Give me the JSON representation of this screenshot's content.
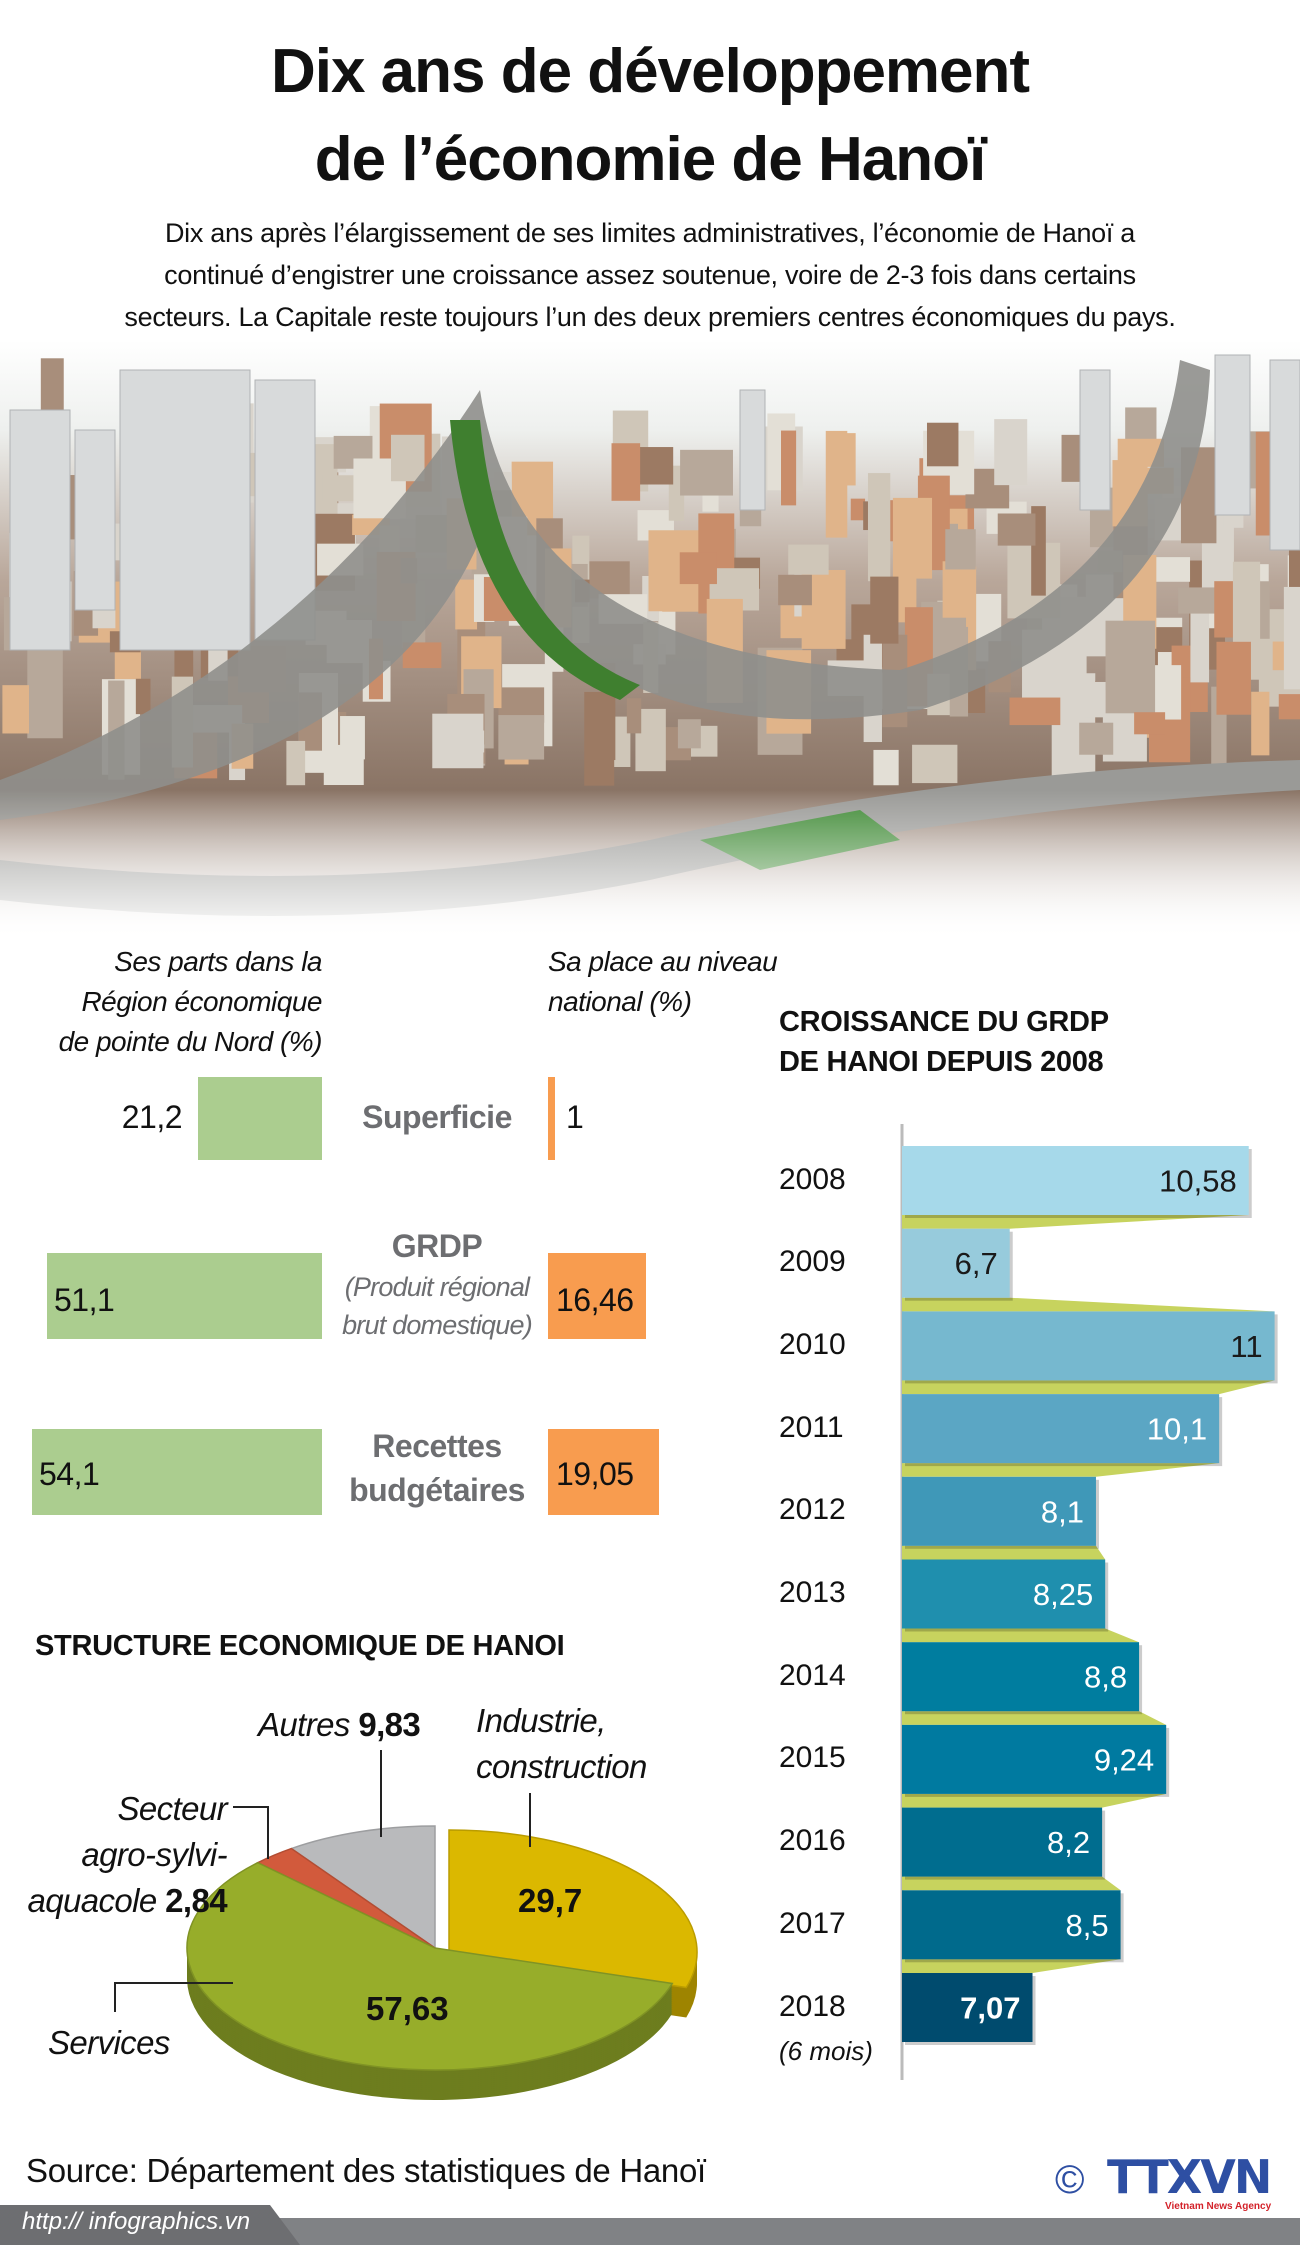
{
  "header": {
    "title_lines": [
      "Dix ans de développement",
      "de l’économie de Hanoï"
    ],
    "intro_lines": [
      "Dix ans après l’élargissement de ses limites administratives, l’économie de Hanoï a",
      "continué d’engistrer une croissance assez soutenue, voire de 2-3 fois dans certains",
      "secteurs. La Capitale reste toujours l’un des deux premiers centres économiques du pays."
    ]
  },
  "photo": {
    "icon": "hanoi-cityscape-photo"
  },
  "comparison": {
    "left_header": [
      "Ses parts dans la",
      "Région économique",
      "de pointe du Nord (%)"
    ],
    "right_header": [
      "Sa place au niveau",
      "national (%)"
    ],
    "rows": [
      {
        "label": "Superficie",
        "sub": [],
        "region_share": "21,2",
        "national_share": "1",
        "region_value": 21.2,
        "national_value": 1
      },
      {
        "label": "GRDP",
        "sub": [
          "(Produit régional",
          "brut domestique)"
        ],
        "region_share": "51,1",
        "national_share": "16,46",
        "region_value": 51.1,
        "national_value": 16.46
      },
      {
        "label": "Recettes",
        "label2": "budgétaires",
        "sub": [],
        "region_share": "54,1",
        "national_share": "19,05",
        "region_value": 54.1,
        "national_value": 19.05
      }
    ],
    "colors": {
      "region": "#abcd8f",
      "national": "#f89c4f"
    }
  },
  "chart_data": [
    {
      "type": "bar",
      "orientation": "horizontal",
      "title": "CROISSANCE DU GRDP DE HANOI DEPUIS 2008",
      "title_lines": [
        "CROISSANCE DU GRDP",
        "DE HANOI DEPUIS 2008"
      ],
      "categories": [
        "2008",
        "2009",
        "2010",
        "2011",
        "2012",
        "2013",
        "2014",
        "2015",
        "2016",
        "2017",
        "2018"
      ],
      "category_note": "(6 mois)",
      "values": [
        10.58,
        6.7,
        11,
        10.1,
        8.1,
        8.25,
        8.8,
        9.24,
        8.2,
        8.5,
        7.07
      ],
      "labels": [
        "10,58",
        "6,7",
        "11",
        "10,1",
        "8,1",
        "8,25",
        "8,8",
        "9,24",
        "8,2",
        "8,5",
        "7,07"
      ],
      "colors": [
        "#a6d9ea",
        "#97cbdc",
        "#76b8cf",
        "#5ba6c4",
        "#3f98b8",
        "#1f8fae",
        "#007d9f",
        "#007aa0",
        "#006d8f",
        "#006a8c",
        "#004b6e"
      ],
      "connector_color": "#c7d35e"
    },
    {
      "type": "pie",
      "title": "STRUCTURE ECONOMIQUE DE HANOI",
      "slices": [
        {
          "name": "Industrie, construction",
          "name_lines": [
            "Industrie,",
            "construction"
          ],
          "value": 29.7,
          "label": "29,7",
          "color": "#dbb800"
        },
        {
          "name": "Services",
          "value": 57.63,
          "label": "57,63",
          "color": "#97ad2a"
        },
        {
          "name": "Secteur agro-sylvi-aquacole",
          "name_lines": [
            "Secteur",
            "agro-sylvi-",
            "aquacole"
          ],
          "value": 2.84,
          "label": "2,84",
          "color": "#d25a3c"
        },
        {
          "name": "Autres",
          "value": 9.83,
          "label": "9,83",
          "color": "#b9babc"
        }
      ]
    }
  ],
  "footer": {
    "source": "Source: Département des statistiques de Hanoï",
    "url": "http:// infographics.vn",
    "copyright": "©",
    "logo_text": "TTXVN",
    "logo_tagline": "Vietnam News Agency"
  }
}
